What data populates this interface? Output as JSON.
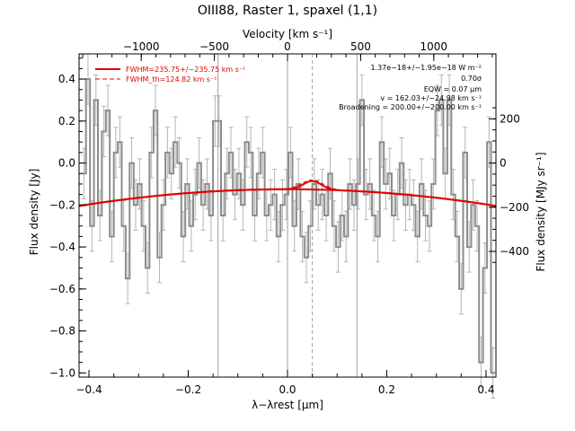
{
  "chart_data": {
    "type": "line",
    "title": "OIII88, Raster 1, spaxel (1,1)",
    "xlabel": "λ−λrest [μm]",
    "ylabel": "Flux density [Jy]",
    "top_xlabel": "Velocity [km s⁻¹]",
    "right_ylabel": "Flux density [MJy sr⁻¹]",
    "xlim": [
      -0.42,
      0.42
    ],
    "ylim": [
      -1.02,
      0.52
    ],
    "xticks": [
      -0.4,
      -0.2,
      0.0,
      0.2,
      0.4
    ],
    "xtick_labels": [
      "−0.4",
      "−0.2",
      "0.0",
      "0.2",
      "0.4"
    ],
    "yticks": [
      0.4,
      0.2,
      0.0,
      -0.2,
      -0.4,
      -0.6,
      -0.8,
      -1.0
    ],
    "ytick_labels": [
      "0.4",
      "0.2",
      "0.0",
      "−0.2",
      "−0.4",
      "−0.6",
      "−0.8",
      "−1.0"
    ],
    "top_xticks": [
      -1000,
      -500,
      0,
      500,
      1000
    ],
    "top_xtick_labels": [
      "−1000",
      "−500",
      "0",
      "500",
      "1000"
    ],
    "right_yticks": [
      200,
      0,
      -200,
      -400
    ],
    "right_ytick_labels": [
      "200",
      "0",
      "−200",
      "−400"
    ],
    "vertical_lines_solid": [
      -0.14,
      0.0,
      0.14
    ],
    "vertical_line_dashed": 0.05,
    "legend": {
      "placement": "top-left",
      "entries": [
        {
          "label": "FWHM=235.75+/−235.75 km s⁻¹",
          "style": "solid"
        },
        {
          "label": "FWHM_th=124.82 km s⁻¹",
          "style": "dashed"
        }
      ]
    },
    "annotations": [
      "1.37e−18+/−1.95e−18 W m⁻²",
      "0.70σ",
      "EQW = 0.07 μm",
      "v = 162.03+/−24.98 km s⁻¹",
      "Broadening = 200.00+/−200.00 km s⁻¹"
    ],
    "series": [
      {
        "x": [
          -0.41,
          -0.402,
          -0.394,
          -0.386,
          -0.378,
          -0.37,
          -0.362,
          -0.354,
          -0.346,
          -0.338,
          -0.33,
          -0.322,
          -0.314,
          -0.306,
          -0.298,
          -0.29,
          -0.282,
          -0.274,
          -0.266,
          -0.258,
          -0.25,
          -0.242,
          -0.234,
          -0.226,
          -0.218,
          -0.21,
          -0.202,
          -0.194,
          -0.186,
          -0.178,
          -0.17,
          -0.162,
          -0.154,
          -0.146,
          -0.138,
          -0.13,
          -0.122,
          -0.114,
          -0.106,
          -0.098,
          -0.09,
          -0.082,
          -0.074,
          -0.066,
          -0.058,
          -0.05,
          -0.042,
          -0.034,
          -0.026,
          -0.018,
          -0.01,
          -0.002,
          0.006,
          0.014,
          0.022,
          0.03,
          0.038,
          0.046,
          0.054,
          0.062,
          0.07,
          0.078,
          0.086,
          0.094,
          0.102,
          0.11,
          0.118,
          0.126,
          0.134,
          0.142,
          0.15,
          0.158,
          0.166,
          0.174,
          0.182,
          0.19,
          0.198,
          0.206,
          0.214,
          0.222,
          0.23,
          0.238,
          0.246,
          0.254,
          0.262,
          0.27,
          0.278,
          0.286,
          0.294,
          0.302,
          0.31,
          0.318,
          0.326,
          0.334,
          0.342,
          0.35,
          0.358,
          0.366,
          0.374,
          0.382,
          0.39,
          0.398,
          0.406,
          0.414
        ],
        "y": [
          -0.05,
          0.4,
          -0.3,
          0.3,
          -0.25,
          0.15,
          0.25,
          -0.35,
          0.05,
          0.1,
          -0.3,
          -0.55,
          0.0,
          -0.2,
          -0.1,
          -0.3,
          -0.5,
          0.05,
          0.25,
          -0.45,
          -0.2,
          0.05,
          -0.05,
          0.1,
          0.0,
          -0.35,
          -0.1,
          -0.3,
          -0.15,
          0.0,
          -0.2,
          -0.1,
          -0.25,
          0.2,
          0.2,
          -0.25,
          -0.05,
          0.05,
          -0.15,
          -0.05,
          -0.2,
          0.1,
          0.05,
          -0.25,
          -0.05,
          0.05,
          -0.25,
          -0.2,
          -0.15,
          -0.35,
          -0.2,
          -0.15,
          0.05,
          -0.3,
          -0.1,
          -0.35,
          -0.45,
          -0.3,
          -0.1,
          -0.2,
          -0.15,
          -0.25,
          -0.05,
          -0.3,
          -0.4,
          -0.25,
          -0.35,
          -0.1,
          -0.2,
          -0.1,
          0.3,
          -0.15,
          -0.1,
          -0.25,
          -0.35,
          0.1,
          -0.1,
          -0.05,
          -0.25,
          -0.15,
          0.0,
          -0.2,
          -0.15,
          -0.2,
          -0.35,
          -0.1,
          -0.25,
          -0.3,
          -0.1,
          0.25,
          0.3,
          -0.05,
          0.3,
          -0.15,
          -0.35,
          -0.6,
          0.05,
          -0.4,
          -0.2,
          -0.3,
          -0.95,
          -0.5,
          0.1,
          -1.0
        ],
        "error": 0.12
      }
    ],
    "fits": {
      "baseline": {
        "center": 0.0,
        "value_at_center": -0.125,
        "curvature": 0.45
      },
      "gaussian": {
        "center": 0.05,
        "amplitude": 0.04,
        "sigma": 0.018
      },
      "gaussian_th": {
        "center": 0.05,
        "amplitude": 0.045,
        "sigma": 0.022
      }
    },
    "colors": {
      "spectrum": "#8c8c8c",
      "errorbars": "#b4b4b4",
      "fit": "#e00000",
      "vlines": "#a0a0a0"
    }
  }
}
